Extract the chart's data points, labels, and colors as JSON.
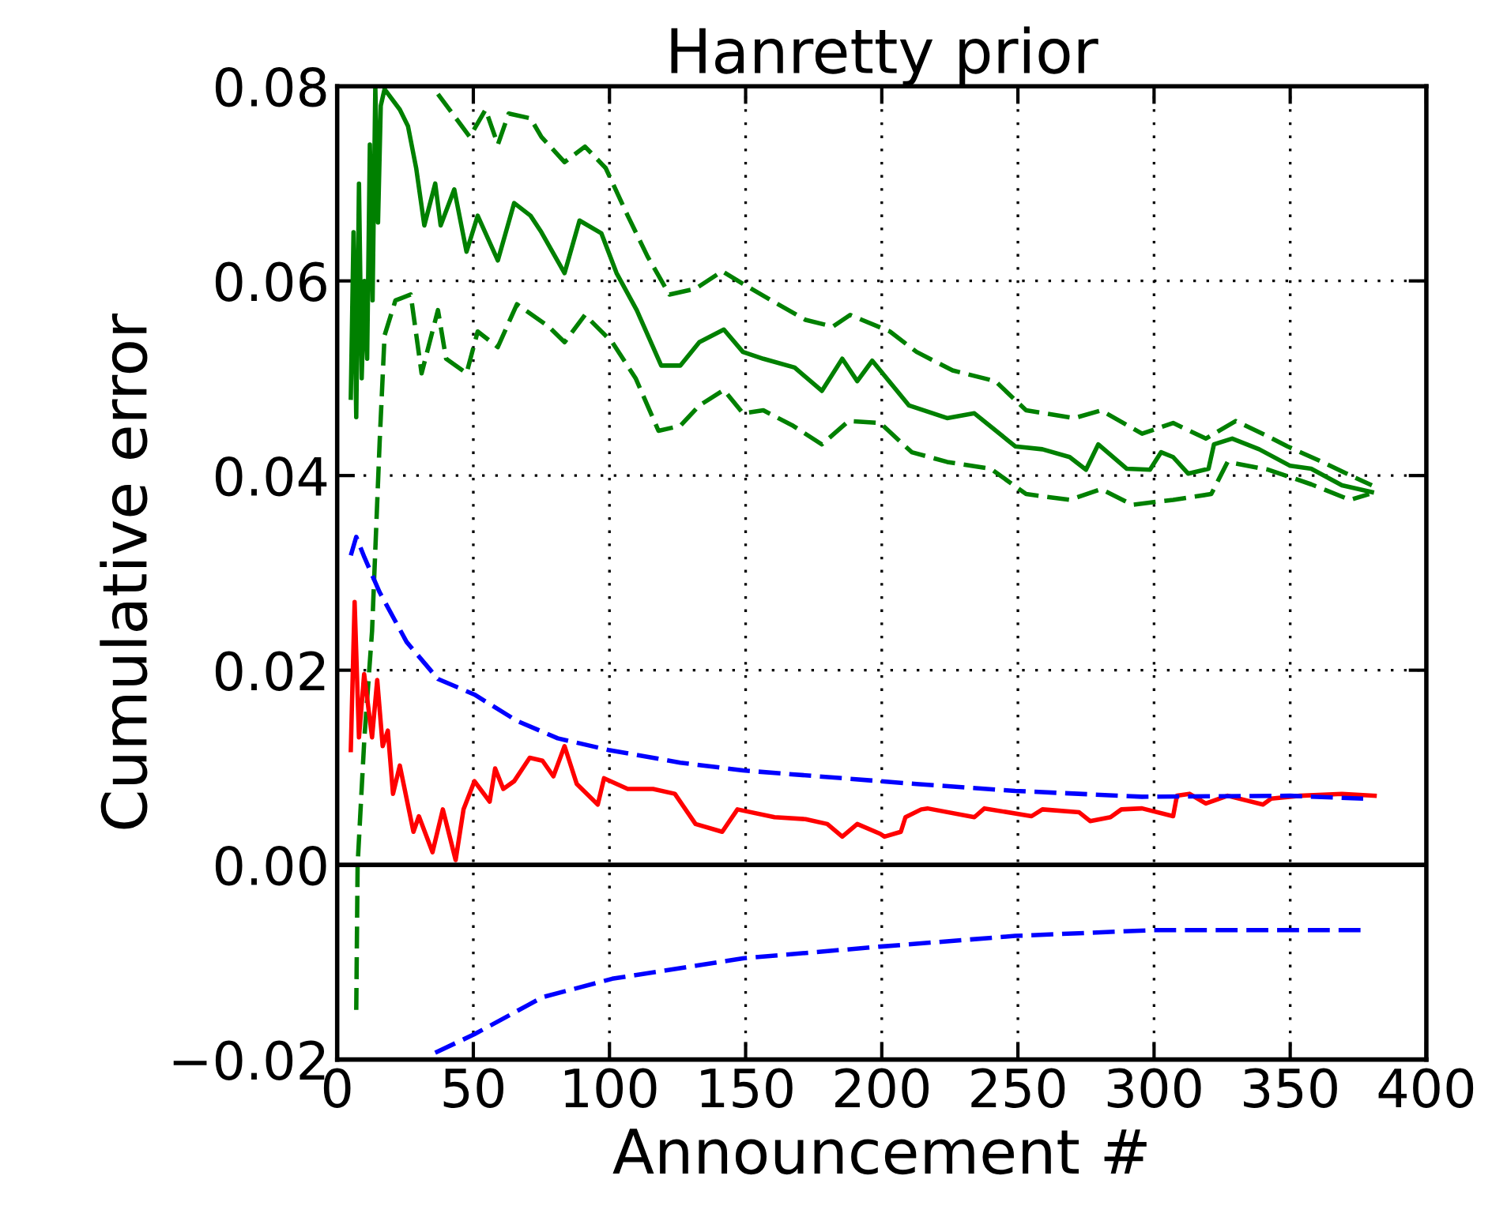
{
  "chart_data": {
    "type": "line",
    "title": "Hanretty prior",
    "xlabel": "Announcement #",
    "ylabel": "Cumulative error",
    "xlim": [
      0,
      400
    ],
    "xticks": [
      0,
      50,
      100,
      150,
      200,
      250,
      300,
      350,
      400
    ],
    "ylim": [
      -0.02,
      0.08
    ],
    "yticks": [
      {
        "value": -0.02,
        "label": "−0.02"
      },
      {
        "value": 0,
        "label": "0.00"
      },
      {
        "value": 0.02,
        "label": "0.02"
      },
      {
        "value": 0.04,
        "label": "0.04"
      },
      {
        "value": 0.06,
        "label": "0.06"
      },
      {
        "value": 0.08,
        "label": "0.08"
      }
    ],
    "grid": true,
    "legend": false,
    "marker": "none",
    "ref_lines": [
      {
        "axis": "y",
        "value": 0,
        "color": "#000000",
        "line_style": "solid"
      }
    ],
    "series": [
      {
        "color": "#008000",
        "line_style": "solid",
        "x": [
          5,
          6,
          7,
          8,
          9,
          10,
          11,
          12,
          13,
          14,
          15,
          16,
          17.4,
          23,
          26,
          29,
          32,
          36,
          38,
          43,
          47.5,
          51.6,
          59,
          65,
          71,
          75,
          83.5,
          89,
          97,
          102.6,
          110,
          119,
          126,
          133,
          142,
          149,
          156.5,
          168,
          178,
          185.5,
          191,
          196.5,
          210,
          224,
          234,
          249,
          259,
          269,
          275,
          279.5,
          290,
          298.5,
          302.6,
          307,
          312.5,
          320,
          322,
          328.7,
          338.6,
          350,
          357.7,
          369,
          380
        ],
        "values": [
          0.048,
          0.065,
          0.046,
          0.07,
          0.05,
          0.06,
          0.052,
          0.074,
          0.058,
          0.08,
          0.066,
          0.078,
          0.0797,
          0.0776,
          0.0759,
          0.0716,
          0.0657,
          0.07,
          0.0657,
          0.0694,
          0.063,
          0.0667,
          0.0621,
          0.068,
          0.0667,
          0.065,
          0.0608,
          0.0662,
          0.0649,
          0.0608,
          0.057,
          0.0513,
          0.0513,
          0.0537,
          0.055,
          0.0527,
          0.052,
          0.0511,
          0.0487,
          0.052,
          0.0497,
          0.0518,
          0.0472,
          0.0459,
          0.0464,
          0.043,
          0.0427,
          0.0419,
          0.0406,
          0.0432,
          0.0407,
          0.0406,
          0.0424,
          0.0419,
          0.0402,
          0.0407,
          0.0432,
          0.0438,
          0.0427,
          0.041,
          0.0407,
          0.039,
          0.0383
        ]
      },
      {
        "color": "#008000",
        "line_style": "dashed",
        "x": [
          37,
          48.7,
          54.5,
          59,
          63,
          71,
          75,
          83.5,
          91,
          98.6,
          106.7,
          114,
          122,
          131.6,
          141.4,
          149,
          159.4,
          172,
          182,
          188.4,
          203,
          212.8,
          226,
          241.7,
          253,
          270.7,
          280.6,
          295.6,
          307,
          319,
          330,
          342,
          349,
          361.7,
          376.8,
          380
        ],
        "values": [
          0.0792,
          0.0748,
          0.0776,
          0.074,
          0.0772,
          0.0767,
          0.0748,
          0.0722,
          0.0738,
          0.0716,
          0.0667,
          0.0625,
          0.0586,
          0.0592,
          0.061,
          0.0597,
          0.058,
          0.056,
          0.0553,
          0.0565,
          0.0548,
          0.0527,
          0.0508,
          0.0497,
          0.0467,
          0.0459,
          0.0467,
          0.0443,
          0.0454,
          0.0438,
          0.0456,
          0.044,
          0.043,
          0.0414,
          0.0394,
          0.039
        ]
      },
      {
        "color": "#008000",
        "line_style": "dashed",
        "x": [
          7,
          7.5,
          10,
          12.8,
          15.6,
          17.4,
          21.4,
          27,
          31,
          37,
          40,
          47.5,
          51.6,
          59,
          66,
          77.7,
          83.5,
          91,
          101,
          109.6,
          118,
          126,
          133,
          142,
          149,
          156.5,
          167.5,
          178,
          187.8,
          199.4,
          211,
          224,
          240,
          253,
          269,
          280.6,
          292,
          307,
          321,
          327,
          342,
          357.7,
          372,
          379
        ],
        "values": [
          -0.0149,
          0.0,
          0.0131,
          0.024,
          0.0435,
          0.0544,
          0.058,
          0.0586,
          0.0505,
          0.057,
          0.052,
          0.0505,
          0.0548,
          0.0532,
          0.0576,
          0.0553,
          0.0537,
          0.0565,
          0.0537,
          0.05,
          0.0446,
          0.0451,
          0.0472,
          0.0488,
          0.0464,
          0.0467,
          0.0451,
          0.0432,
          0.0456,
          0.0454,
          0.0424,
          0.0414,
          0.0407,
          0.0381,
          0.0375,
          0.0386,
          0.037,
          0.0375,
          0.0381,
          0.0414,
          0.0406,
          0.0391,
          0.0375,
          0.0381
        ]
      },
      {
        "color": "#ff0000",
        "line_style": "solid",
        "x": [
          5,
          6.4,
          8,
          9.9,
          12.8,
          14.7,
          16.7,
          18.6,
          20.5,
          23,
          28,
          30,
          35,
          38.8,
          43.5,
          46.4,
          50.4,
          56,
          58,
          61,
          65,
          70.7,
          75.4,
          79.4,
          83.5,
          88,
          95.7,
          98,
          106.7,
          116,
          124,
          131.6,
          141.4,
          147,
          160.6,
          172,
          180,
          185.5,
          191,
          199.4,
          201,
          207,
          208.7,
          214.5,
          216.8,
          234,
          237.7,
          255,
          259,
          272.5,
          276.5,
          284,
          288,
          295.6,
          307,
          308.4,
          313,
          319,
          327,
          340,
          343,
          353.6,
          369,
          381
        ],
        "values": [
          0.0118,
          0.027,
          0.0131,
          0.0196,
          0.0131,
          0.019,
          0.0122,
          0.0138,
          0.0073,
          0.0102,
          0.0034,
          0.005,
          0.0013,
          0.0057,
          0.0005,
          0.0057,
          0.0086,
          0.0065,
          0.0099,
          0.0078,
          0.0086,
          0.011,
          0.0107,
          0.0091,
          0.0122,
          0.0083,
          0.0062,
          0.0089,
          0.0078,
          0.0078,
          0.0073,
          0.0042,
          0.0034,
          0.0057,
          0.0049,
          0.0047,
          0.0042,
          0.0029,
          0.0042,
          0.0032,
          0.0029,
          0.0034,
          0.0049,
          0.0057,
          0.0058,
          0.0049,
          0.0058,
          0.005,
          0.0057,
          0.0054,
          0.0045,
          0.0049,
          0.0057,
          0.0058,
          0.005,
          0.0071,
          0.0073,
          0.0063,
          0.0071,
          0.0062,
          0.0068,
          0.0071,
          0.0073,
          0.0071
        ]
      },
      {
        "color": "#0000ff",
        "line_style": "dashed",
        "x": [
          5,
          7,
          10,
          15.6,
          25.5,
          37,
          50.4,
          66,
          81,
          99.7,
          126,
          149,
          199.4,
          212.8,
          249,
          295.6,
          350,
          376.8
        ],
        "values": [
          0.0318,
          0.0337,
          0.0316,
          0.028,
          0.0229,
          0.0191,
          0.0175,
          0.0148,
          0.013,
          0.0118,
          0.0105,
          0.0097,
          0.0086,
          0.0083,
          0.0076,
          0.007,
          0.0071,
          0.0068
        ]
      },
      {
        "color": "#0000ff",
        "line_style": "dashed",
        "x": [
          36,
          50.4,
          75.4,
          101,
          149,
          199.4,
          249,
          300,
          376.8
        ],
        "values": [
          -0.0193,
          -0.0174,
          -0.0136,
          -0.0117,
          -0.0096,
          -0.0084,
          -0.0073,
          -0.0067,
          -0.0067
        ]
      }
    ]
  }
}
